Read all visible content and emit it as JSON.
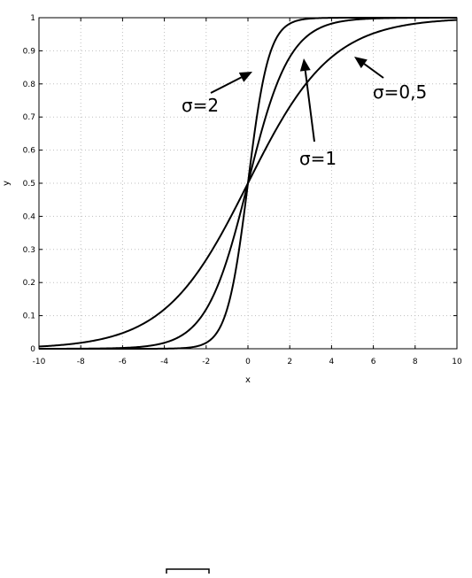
{
  "chart_data": {
    "type": "line",
    "title": "",
    "xlabel": "x",
    "ylabel": "y",
    "xlim": [
      -10,
      10
    ],
    "ylim": [
      0,
      1
    ],
    "x_ticks": [
      -10,
      -8,
      -6,
      -4,
      -2,
      0,
      2,
      4,
      6,
      8,
      10
    ],
    "y_ticks": [
      0,
      0.1,
      0.2,
      0.3,
      0.4,
      0.5,
      0.6,
      0.7,
      0.8,
      0.9,
      1
    ],
    "y_tick_labels": [
      "0",
      "0.1",
      "0.2",
      "0.3",
      "0.4",
      "0.5",
      "0.6",
      "0.7",
      "0.8",
      "0.9",
      "1"
    ],
    "grid": true,
    "legend": "none",
    "series": [
      {
        "label": "σ=2",
        "sigma": 2,
        "x": [
          -10,
          -8,
          -6,
          -4,
          -3,
          -2,
          -1.5,
          -1,
          -0.5,
          0,
          0.5,
          1,
          1.5,
          2,
          3,
          4,
          6,
          8,
          10
        ],
        "y": [
          0.0,
          0.0,
          0.0,
          0.0003,
          0.0025,
          0.018,
          0.047,
          0.119,
          0.269,
          0.5,
          0.731,
          0.881,
          0.953,
          0.982,
          0.9975,
          0.9997,
          1.0,
          1.0,
          1.0
        ]
      },
      {
        "label": "σ=1",
        "sigma": 1,
        "x": [
          -10,
          -8,
          -6,
          -5,
          -4,
          -3,
          -2,
          -1.5,
          -1,
          -0.5,
          0,
          0.5,
          1,
          1.5,
          2,
          3,
          4,
          5,
          6,
          8,
          10
        ],
        "y": [
          0.0,
          0.0003,
          0.0025,
          0.0067,
          0.018,
          0.047,
          0.119,
          0.182,
          0.269,
          0.378,
          0.5,
          0.622,
          0.731,
          0.818,
          0.881,
          0.953,
          0.982,
          0.993,
          0.9975,
          0.9997,
          1.0
        ]
      },
      {
        "label": "σ=0,5",
        "sigma": 0.5,
        "x": [
          -10,
          -9,
          -8,
          -7,
          -6,
          -5,
          -4,
          -3,
          -2,
          -1,
          0,
          1,
          2,
          3,
          4,
          5,
          6,
          7,
          8,
          9,
          10
        ],
        "y": [
          0.0067,
          0.011,
          0.018,
          0.029,
          0.047,
          0.076,
          0.119,
          0.182,
          0.269,
          0.378,
          0.5,
          0.622,
          0.731,
          0.818,
          0.881,
          0.924,
          0.953,
          0.971,
          0.982,
          0.989,
          0.993
        ]
      }
    ],
    "annotations": [
      {
        "text": "σ=2",
        "target_series": "σ=2"
      },
      {
        "text": "σ=1",
        "target_series": "σ=1"
      },
      {
        "text": "σ=0,5",
        "target_series": "σ=0,5"
      }
    ]
  }
}
